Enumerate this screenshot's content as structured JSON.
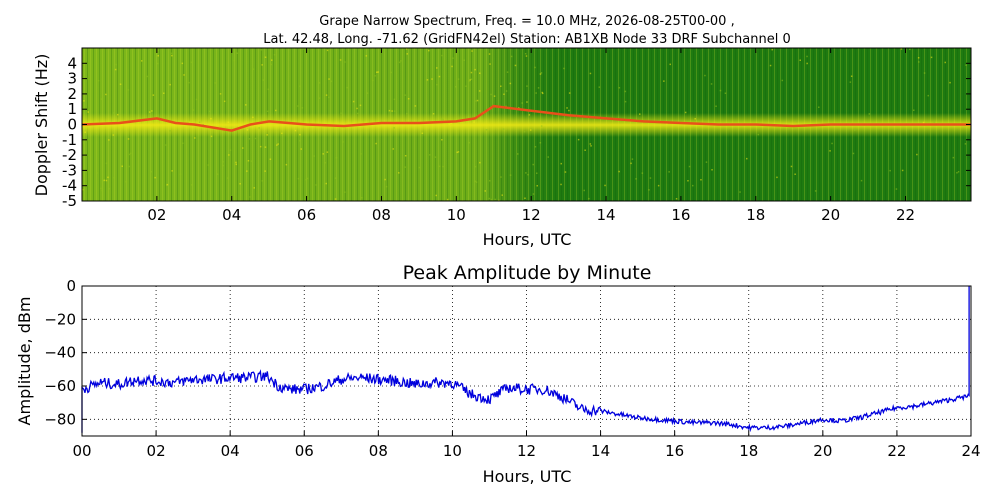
{
  "figure": {
    "title_line1": "Grape Narrow Spectrum, Freq. = 10.0 MHz, 2026-08-25T00-00 ,",
    "title_line2": "Lat.  42.48, Long. -71.62 (GridFN42el) Station: AB1XB Node 33 DRF Subchannel 0"
  },
  "colors": {
    "spectrum_background": "#1e7a10",
    "spectrum_mid": "#8fc21c",
    "spectrum_high": "#f2ea14",
    "spectrum_peak": "#e8501a",
    "amplitude_line": "#0000dd"
  },
  "chart_data": [
    {
      "type": "heatmap",
      "xlabel": "Hours, UTC",
      "ylabel": "Doppler Shift (Hz)",
      "xlim": [
        0,
        23.75
      ],
      "ylim": [
        -5,
        5
      ],
      "x_ticks": [
        "02",
        "04",
        "06",
        "08",
        "10",
        "12",
        "14",
        "16",
        "18",
        "20",
        "22"
      ],
      "y_ticks": [
        "4",
        "3",
        "2",
        "1",
        "0",
        "-1",
        "-2",
        "-3",
        "-4",
        "-5"
      ],
      "grid": false,
      "doppler_trace": {
        "hours": [
          0,
          1,
          2,
          2.5,
          3,
          4,
          4.5,
          5,
          6,
          7,
          8,
          9,
          10,
          10.5,
          11,
          12,
          13,
          14,
          15,
          16,
          17,
          18,
          19,
          20,
          21,
          22,
          23,
          23.75
        ],
        "shift_hz": [
          0,
          0.1,
          0.4,
          0.1,
          0,
          -0.4,
          0,
          0.2,
          0,
          -0.1,
          0.1,
          0.1,
          0.2,
          0.4,
          1.2,
          0.9,
          0.6,
          0.4,
          0.2,
          0.1,
          0,
          0,
          -0.1,
          0,
          0,
          0,
          0,
          0
        ]
      }
    },
    {
      "type": "line",
      "title": "Peak Amplitude by Minute",
      "xlabel": "Hours, UTC",
      "ylabel": "Amplitude, dBm",
      "xlim": [
        0,
        24
      ],
      "ylim": [
        -90,
        0
      ],
      "x_ticks": [
        "00",
        "02",
        "04",
        "06",
        "08",
        "10",
        "12",
        "14",
        "16",
        "18",
        "20",
        "22",
        "24"
      ],
      "y_ticks": [
        "0",
        "−20",
        "−40",
        "−60",
        "−80"
      ],
      "grid": true,
      "series": [
        {
          "hours": [
            0,
            0.5,
            1,
            1.5,
            2,
            2.5,
            3,
            3.5,
            4,
            4.5,
            5,
            5.3,
            5.6,
            6,
            6.5,
            7,
            7.5,
            8,
            8.5,
            9,
            9.5,
            10,
            10.5,
            11,
            11.5,
            12,
            12.5,
            13,
            13.5,
            14,
            14.5,
            15,
            15.5,
            16,
            16.5,
            17,
            17.5,
            18,
            18.5,
            19,
            19.5,
            20,
            20.5,
            21,
            21.5,
            22,
            22.5,
            23,
            23.5,
            23.95
          ],
          "dbm": [
            -62,
            -58,
            -59,
            -56,
            -57,
            -58,
            -56,
            -56,
            -55,
            -55,
            -54,
            -60,
            -62,
            -62,
            -60,
            -56,
            -55,
            -56,
            -57,
            -59,
            -58,
            -58,
            -65,
            -68,
            -61,
            -62,
            -62,
            -67,
            -74,
            -75,
            -77,
            -79,
            -80,
            -81,
            -82,
            -82,
            -83,
            -85,
            -85,
            -84,
            -82,
            -80,
            -81,
            -79,
            -76,
            -73,
            -72,
            -70,
            -68,
            -66
          ]
        }
      ]
    }
  ]
}
